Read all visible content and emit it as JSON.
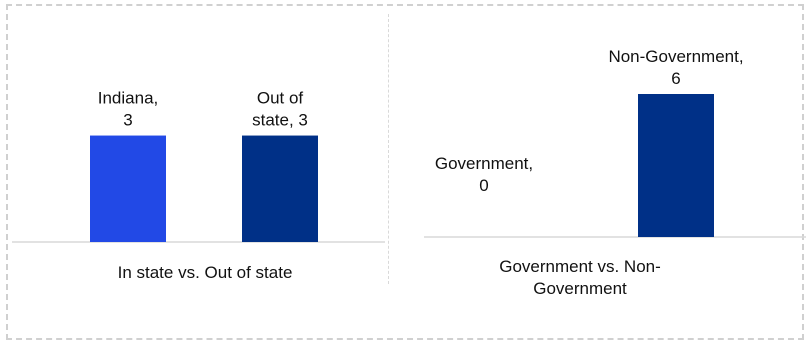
{
  "chart_data": [
    {
      "type": "bar",
      "title": "In state vs. Out of state",
      "categories": [
        "Indiana",
        "Out of state"
      ],
      "values": [
        3,
        3
      ],
      "colors": [
        "#2249e6",
        "#003087"
      ],
      "data_labels": [
        [
          "Indiana,",
          "3"
        ],
        [
          "Out of",
          "state, 3"
        ]
      ],
      "xlabel": "",
      "ylabel": "",
      "grid": false
    },
    {
      "type": "bar",
      "title": "Government vs. Non-Government",
      "title_lines": [
        "Government vs. Non-",
        "Government"
      ],
      "categories": [
        "Government",
        "Non-Government"
      ],
      "values": [
        0,
        6
      ],
      "colors": [
        "#2249e6",
        "#003087"
      ],
      "data_labels": [
        [
          "Government,",
          "0"
        ],
        [
          "Non-Government,",
          "6"
        ]
      ],
      "xlabel": "",
      "ylabel": "",
      "grid": false
    }
  ]
}
